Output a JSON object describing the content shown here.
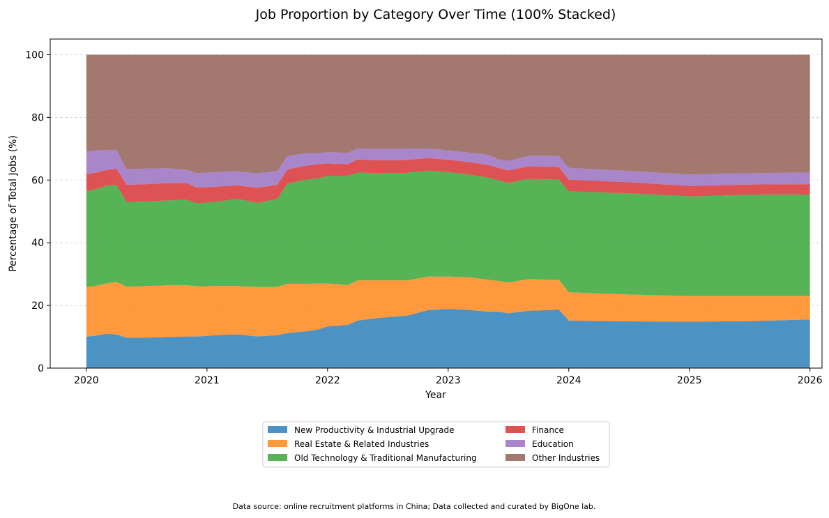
{
  "chart_data": {
    "type": "area",
    "stacked": "100%",
    "title": "Job Proportion by Category Over Time (100% Stacked)",
    "xlabel": "Year",
    "ylabel": "Percentage of Total Jobs (%)",
    "x_ticks": [
      "2020",
      "2021",
      "2022",
      "2023",
      "2024",
      "2025",
      "2026"
    ],
    "y_ticks": [
      0,
      20,
      40,
      60,
      80,
      100
    ],
    "xlim": [
      2019.7,
      2026.1
    ],
    "ylim": [
      0,
      105
    ],
    "grid": "y-dashed",
    "legend_placement": "bottom-center",
    "x": [
      2020.0,
      2020.083,
      2020.167,
      2020.25,
      2020.333,
      2020.5,
      2020.667,
      2020.833,
      2020.917,
      2021.083,
      2021.25,
      2021.417,
      2021.583,
      2021.667,
      2021.833,
      2021.917,
      2022.0,
      2022.167,
      2022.25,
      2022.417,
      2022.583,
      2022.667,
      2022.833,
      2023.0,
      2023.167,
      2023.333,
      2023.417,
      2023.5,
      2023.667,
      2023.833,
      2023.917,
      2024.0,
      2024.5,
      2025.0,
      2025.5,
      2026.0
    ],
    "series": [
      {
        "name": "New Productivity & Industrial Upgrade",
        "color": "#1f77b4",
        "values": [
          10.0,
          10.4,
          11.0,
          10.7,
          9.7,
          9.7,
          9.9,
          10.1,
          10.1,
          10.5,
          10.8,
          10.1,
          10.5,
          11.2,
          11.8,
          12.3,
          13.3,
          13.8,
          15.2,
          16.0,
          16.5,
          16.8,
          18.5,
          18.9,
          18.6,
          18.0,
          18.0,
          17.5,
          18.3,
          18.5,
          18.7,
          15.2,
          14.9,
          14.8,
          15.0,
          15.5
        ]
      },
      {
        "name": "Real Estate & Related Industries",
        "color": "#ff7f0e",
        "values": [
          15.9,
          15.9,
          16.0,
          16.8,
          16.3,
          16.5,
          16.5,
          16.4,
          16.0,
          15.7,
          15.4,
          15.8,
          15.4,
          15.7,
          15.1,
          14.7,
          13.7,
          12.7,
          12.8,
          12.0,
          11.5,
          11.2,
          10.7,
          10.3,
          10.4,
          10.2,
          9.8,
          9.8,
          10.1,
          9.7,
          9.5,
          9.0,
          8.6,
          8.2,
          8.0,
          7.5
        ]
      },
      {
        "name": "Old Technology & Traditional Manufacturing",
        "color": "#2ca02c",
        "values": [
          30.5,
          30.8,
          31.2,
          30.9,
          27.0,
          27.0,
          27.1,
          27.2,
          26.5,
          26.9,
          27.8,
          26.8,
          28.1,
          32.0,
          33.3,
          33.5,
          34.3,
          34.8,
          34.4,
          34.2,
          34.2,
          34.3,
          33.8,
          33.3,
          32.8,
          32.6,
          32.1,
          31.8,
          32.0,
          32.0,
          32.0,
          32.2,
          32.3,
          31.8,
          32.3,
          32.4
        ]
      },
      {
        "name": "Finance",
        "color": "#d62728",
        "values": [
          5.5,
          5.3,
          5.0,
          5.2,
          5.5,
          5.5,
          5.5,
          5.3,
          5.0,
          4.8,
          4.3,
          4.8,
          4.5,
          4.5,
          4.5,
          4.5,
          4.0,
          3.8,
          4.2,
          4.1,
          4.1,
          4.2,
          4.0,
          4.0,
          4.0,
          4.0,
          4.0,
          4.0,
          4.0,
          4.0,
          4.0,
          3.7,
          3.5,
          3.3,
          3.3,
          3.3
        ]
      },
      {
        "name": "Education",
        "color": "#9467bd",
        "values": [
          7.2,
          7.1,
          6.4,
          6.0,
          5.0,
          5.0,
          4.8,
          4.3,
          4.6,
          4.7,
          4.5,
          4.6,
          4.4,
          4.3,
          4.0,
          3.5,
          3.6,
          3.6,
          3.5,
          3.6,
          3.6,
          3.6,
          3.0,
          3.0,
          3.0,
          3.2,
          2.7,
          3.0,
          3.3,
          3.5,
          3.5,
          3.8,
          3.6,
          3.7,
          3.6,
          3.7
        ]
      },
      {
        "name": "Other Industries",
        "color": "#8c564b",
        "values": [
          30.9,
          30.5,
          30.4,
          30.4,
          36.5,
          36.3,
          36.2,
          36.7,
          37.8,
          37.4,
          37.2,
          37.9,
          37.1,
          32.3,
          31.3,
          31.5,
          31.1,
          31.3,
          29.9,
          30.1,
          30.1,
          29.9,
          30.0,
          30.5,
          31.2,
          32.0,
          33.4,
          33.9,
          32.3,
          32.3,
          32.3,
          36.1,
          37.1,
          38.2,
          37.8,
          37.6
        ]
      }
    ],
    "source_note": "Data source: online recruitment platforms in China; Data collected and curated by BigOne lab."
  }
}
